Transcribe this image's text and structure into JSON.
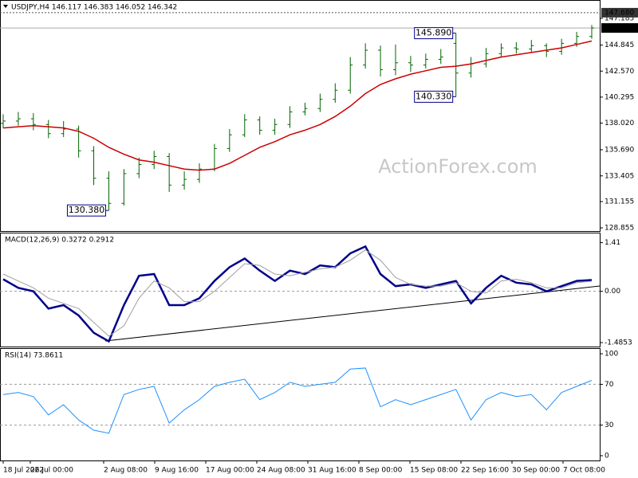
{
  "chart_data": [
    {
      "type": "ohlc",
      "title": "USDJPY,H4  146.117 146.383 146.052 146.342",
      "watermark": "ActionForex.com",
      "color": "#006400",
      "open": [
        138.0,
        138.2,
        138.4,
        137.9,
        137.1,
        137.5,
        135.6,
        133.2,
        131.0,
        133.6,
        134.4,
        135.1,
        132.6,
        133.1,
        134.0,
        135.8,
        137.0,
        138.3,
        137.4,
        137.9,
        139.0,
        139.3,
        140.1,
        140.9,
        143.1,
        144.4,
        142.7,
        143.3,
        143.1,
        143.6,
        145.0,
        142.4,
        143.2,
        144.1,
        144.6,
        144.5,
        144.8,
        144.3,
        145.0,
        145.6
      ],
      "high": [
        138.8,
        139.0,
        138.9,
        138.3,
        138.2,
        137.8,
        136.0,
        133.8,
        134.0,
        135.0,
        135.6,
        135.4,
        133.8,
        134.5,
        136.2,
        137.5,
        138.8,
        138.6,
        138.4,
        139.5,
        139.8,
        140.6,
        141.5,
        143.8,
        145.0,
        144.8,
        144.9,
        143.9,
        144.1,
        144.5,
        145.89,
        143.8,
        144.6,
        145.0,
        145.1,
        145.3,
        145.0,
        145.4,
        146.0,
        146.6
      ],
      "low": [
        137.6,
        137.8,
        137.4,
        136.7,
        136.8,
        135.0,
        132.6,
        130.38,
        130.8,
        133.2,
        134.0,
        132.0,
        132.2,
        132.8,
        133.8,
        135.5,
        136.8,
        137.0,
        137.0,
        137.6,
        138.7,
        139.0,
        139.8,
        140.6,
        142.8,
        142.1,
        142.2,
        142.5,
        142.8,
        143.2,
        140.33,
        142.0,
        142.9,
        143.8,
        144.1,
        144.2,
        143.8,
        144.0,
        144.7,
        145.4
      ],
      "close": [
        138.2,
        138.4,
        137.9,
        137.1,
        137.5,
        135.6,
        133.2,
        131.0,
        133.6,
        134.4,
        135.1,
        132.6,
        133.1,
        134.0,
        135.8,
        137.0,
        138.3,
        137.4,
        137.9,
        139.0,
        139.3,
        140.1,
        140.9,
        143.1,
        144.4,
        142.7,
        143.3,
        143.1,
        143.6,
        143.8,
        142.4,
        143.2,
        144.1,
        144.6,
        144.5,
        144.8,
        144.3,
        145.0,
        145.6,
        146.342
      ],
      "overlays": [
        {
          "color": "#cc0000",
          "values": [
            137.6,
            137.7,
            137.8,
            137.7,
            137.6,
            137.3,
            136.7,
            135.9,
            135.3,
            134.8,
            134.6,
            134.3,
            134.0,
            133.9,
            134.0,
            134.5,
            135.2,
            135.9,
            136.4,
            137.0,
            137.4,
            137.9,
            138.6,
            139.5,
            140.6,
            141.4,
            141.9,
            142.3,
            142.6,
            142.9,
            143.0,
            143.2,
            143.5,
            143.8,
            144.0,
            144.2,
            144.4,
            144.6,
            144.9,
            145.2
          ]
        }
      ],
      "ylim": [
        128.58,
        148.79
      ],
      "yticks": [
        128.855,
        131.155,
        133.405,
        {
          "value": 135.69,
          "label": "135.690"
        },
        {
          "value": 138.02,
          "label": "138.020"
        },
        140.295,
        {
          "value": 142.57,
          "label": "142.570"
        },
        144.845,
        147.185
      ],
      "price_lines": [
        {
          "value": 147.68,
          "label": "147.680",
          "style": "dashed"
        },
        {
          "value": 146.342,
          "style": "current"
        }
      ],
      "annotations": [
        {
          "value": 145.89,
          "label": "145.890"
        },
        {
          "value": 140.33,
          "label": "140.330"
        },
        {
          "value": 130.38,
          "label": "130.380"
        }
      ]
    },
    {
      "type": "line",
      "title": "MACD(12,26,9) 0.3272 0.2912",
      "series": [
        {
          "color": "#00008b",
          "values": [
            0.35,
            0.1,
            0.0,
            -0.5,
            -0.4,
            -0.7,
            -1.2,
            -1.45,
            -0.4,
            0.45,
            0.5,
            -0.4,
            -0.4,
            -0.2,
            0.3,
            0.7,
            0.95,
            0.6,
            0.3,
            0.6,
            0.5,
            0.75,
            0.7,
            1.1,
            1.3,
            0.5,
            0.15,
            0.2,
            0.1,
            0.2,
            0.3,
            -0.35,
            0.1,
            0.45,
            0.25,
            0.2,
            0.0,
            0.15,
            0.3,
            0.3272
          ]
        },
        {
          "color": "#a0a0a0",
          "values": [
            0.5,
            0.3,
            0.1,
            -0.2,
            -0.35,
            -0.5,
            -0.9,
            -1.3,
            -1.0,
            -0.2,
            0.3,
            0.1,
            -0.3,
            -0.3,
            0.0,
            0.4,
            0.8,
            0.75,
            0.5,
            0.45,
            0.55,
            0.65,
            0.7,
            0.9,
            1.2,
            0.9,
            0.4,
            0.2,
            0.15,
            0.15,
            0.25,
            0.0,
            -0.05,
            0.3,
            0.35,
            0.25,
            0.1,
            0.1,
            0.25,
            0.2912
          ]
        }
      ],
      "ylim": [
        -1.6,
        1.7
      ],
      "yticks": [
        1.41,
        {
          "value": 0,
          "label": "0.00"
        },
        -1.4853
      ],
      "levels": [
        0
      ]
    },
    {
      "type": "line",
      "title": "RSI(14) 73.8611",
      "series": [
        {
          "color": "#1e90ff",
          "values": [
            60,
            62,
            58,
            40,
            50,
            35,
            25,
            22,
            60,
            65,
            68,
            32,
            45,
            55,
            68,
            72,
            75,
            55,
            62,
            72,
            68,
            70,
            72,
            85,
            86,
            48,
            55,
            50,
            55,
            60,
            65,
            35,
            55,
            62,
            58,
            60,
            45,
            62,
            68,
            73.8611
          ]
        }
      ],
      "ylim": [
        -4.7,
        105.5
      ],
      "yticks": [
        100,
        70,
        30,
        0
      ],
      "levels": [
        70,
        30
      ],
      "xtick_labels": [
        "18 Jul 2022",
        "26 Jul 00:00",
        "2 Aug 08:00",
        "9 Aug 16:00",
        "17 Aug 00:00",
        "24 Aug 08:00",
        "31 Aug 16:00",
        "8 Sep 00:00",
        "15 Sep 08:00",
        "22 Sep 16:00",
        "30 Sep 00:00",
        "7 Oct 08:00"
      ]
    }
  ]
}
